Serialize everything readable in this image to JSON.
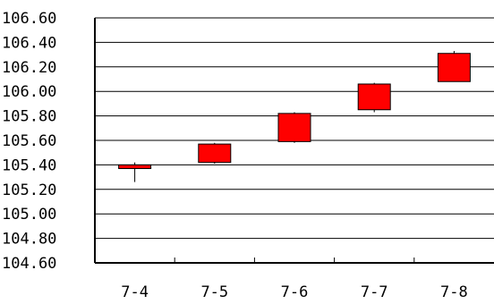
{
  "chart_data": {
    "type": "candlestick",
    "title": "",
    "xlabel": "",
    "ylabel": "",
    "ylim": [
      104.6,
      106.6
    ],
    "ytick_step": 0.2,
    "yticks": [
      "106.60",
      "106.40",
      "106.20",
      "106.00",
      "105.80",
      "105.60",
      "105.40",
      "105.20",
      "105.00",
      "104.80",
      "104.60"
    ],
    "categories": [
      "7-4",
      "7-5",
      "7-6",
      "7-7",
      "7-8"
    ],
    "candles": [
      {
        "date": "7-4",
        "open": 105.37,
        "close": 105.4,
        "high": 105.42,
        "low": 105.26
      },
      {
        "date": "7-5",
        "open": 105.42,
        "close": 105.57,
        "high": 105.58,
        "low": 105.41
      },
      {
        "date": "7-6",
        "open": 105.59,
        "close": 105.82,
        "high": 105.83,
        "low": 105.58
      },
      {
        "date": "7-7",
        "open": 105.85,
        "close": 106.06,
        "high": 106.07,
        "low": 105.83
      },
      {
        "date": "7-8",
        "open": 106.08,
        "close": 106.31,
        "high": 106.33,
        "low": 106.08
      }
    ],
    "grid": true,
    "legend": "none",
    "colors": {
      "candle": "#ff0000",
      "outline": "#000000",
      "grid": "#000000"
    }
  }
}
